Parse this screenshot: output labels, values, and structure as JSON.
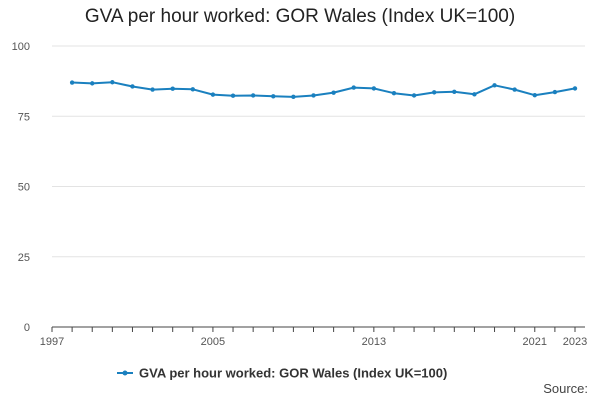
{
  "chart_data": {
    "type": "line",
    "title": "GVA per hour worked: GOR Wales (Index UK=100)",
    "xlabel": "",
    "ylabel": "",
    "x": [
      1998,
      1999,
      2000,
      2001,
      2002,
      2003,
      2004,
      2005,
      2006,
      2007,
      2008,
      2009,
      2010,
      2011,
      2012,
      2013,
      2014,
      2015,
      2016,
      2017,
      2018,
      2019,
      2020,
      2021,
      2022,
      2023
    ],
    "series": [
      {
        "name": "GVA per hour worked: GOR Wales (Index UK=100)",
        "color": "#1a80bf",
        "values": [
          87.0,
          86.7,
          87.1,
          85.6,
          84.5,
          84.8,
          84.6,
          82.7,
          82.3,
          82.4,
          82.1,
          81.9,
          82.4,
          83.4,
          85.2,
          84.9,
          83.2,
          82.4,
          83.5,
          83.7,
          82.8,
          86.0,
          84.5,
          82.5,
          83.6,
          84.9
        ]
      }
    ],
    "ylim": [
      0,
      100
    ],
    "yticks": [
      0,
      25,
      50,
      75,
      100
    ],
    "xlim": [
      1997,
      2023
    ],
    "xticks": [
      1997,
      2005,
      2013,
      2021,
      2023
    ],
    "grid": true,
    "legend": "bottom"
  },
  "footer": {
    "source": "Source:"
  }
}
